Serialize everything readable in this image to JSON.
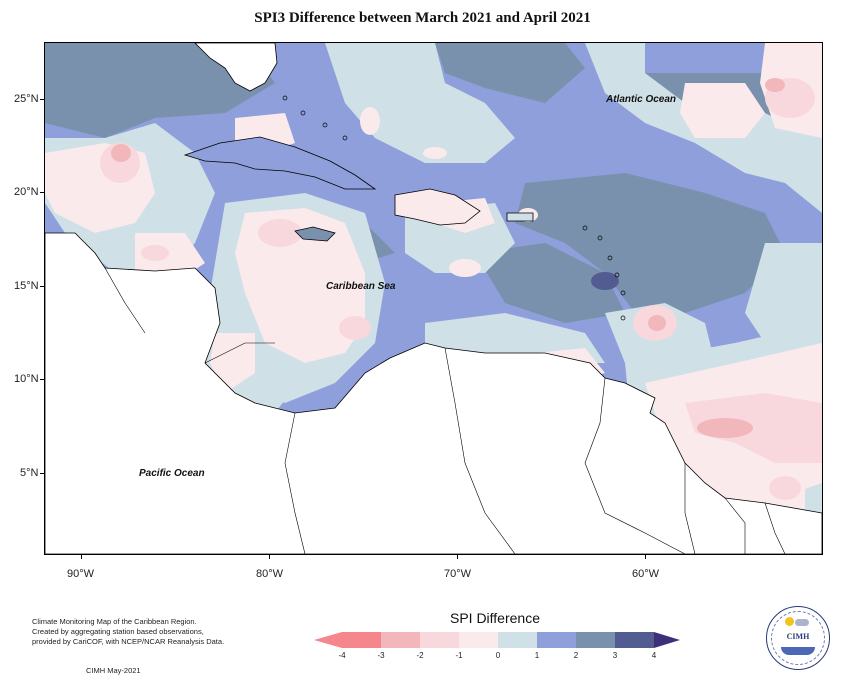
{
  "title": "SPI3 Difference between March 2021 and April 2021",
  "map": {
    "y_axis_labels": [
      "25°N",
      "20°N",
      "15°N",
      "10°N",
      "5°N"
    ],
    "x_axis_labels": [
      "90°W",
      "80°W",
      "70°W",
      "60°W"
    ],
    "ocean_labels": {
      "atlantic": "Atlantic Ocean",
      "caribbean": "Caribbean Sea",
      "pacific": "Pacific Ocean"
    },
    "colors": {
      "land": "#ffffff",
      "coast": "#000000"
    }
  },
  "credits": {
    "line1": "Climate Monitoring Map of the Caribbean Region.",
    "line2": "Created by aggregating station based observations,",
    "line3": "provided by CariCOF, with NCEP/NCAR Reanalysis Data.",
    "source": "CIMH May-2021"
  },
  "legend": {
    "title": "SPI Difference",
    "labels": [
      "-4",
      "-3",
      "-2",
      "-1",
      "0",
      "1",
      "2",
      "3",
      "4"
    ],
    "colors": [
      "#f4868c",
      "#f1b7bb",
      "#f8d8dd",
      "#fbeaec",
      "#cfe0e7",
      "#8e9fdb",
      "#7a91ad",
      "#535c91"
    ]
  },
  "logo": {
    "text": "CIMH",
    "icon": "cimh-logo-icon"
  }
}
